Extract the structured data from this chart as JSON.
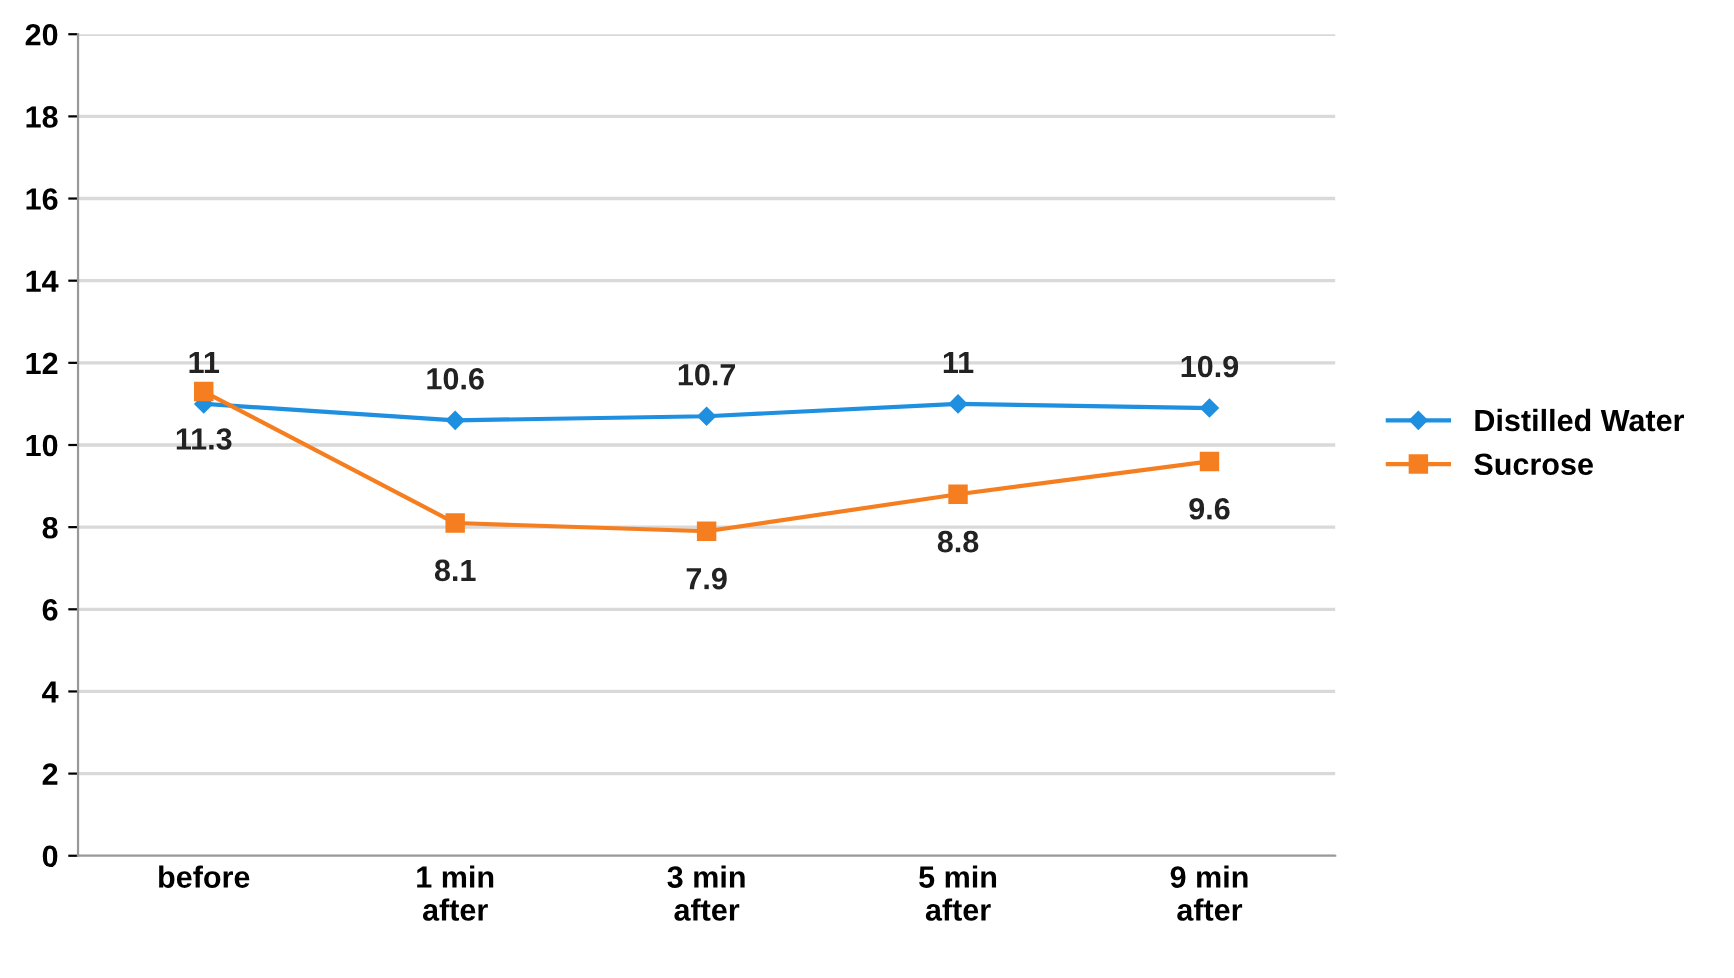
{
  "chart_data": {
    "type": "line",
    "categories": [
      "before",
      "1 min\nafter",
      "3 min\nafter",
      "5 min\nafter",
      "9 min\nafter"
    ],
    "series": [
      {
        "name": "Distilled Water",
        "color": "#1f8fe0",
        "marker": "diamond",
        "values": [
          11,
          10.6,
          10.7,
          11,
          10.9
        ]
      },
      {
        "name": "Sucrose",
        "color": "#f57f20",
        "marker": "square",
        "values": [
          11.3,
          8.1,
          7.9,
          8.8,
          9.6
        ]
      }
    ],
    "ylim": [
      0,
      20
    ],
    "yticks": [
      0,
      2,
      4,
      6,
      8,
      10,
      12,
      14,
      16,
      18,
      20
    ],
    "grid": "y",
    "legend": "right",
    "data_labels": true,
    "line_style": "solid"
  }
}
